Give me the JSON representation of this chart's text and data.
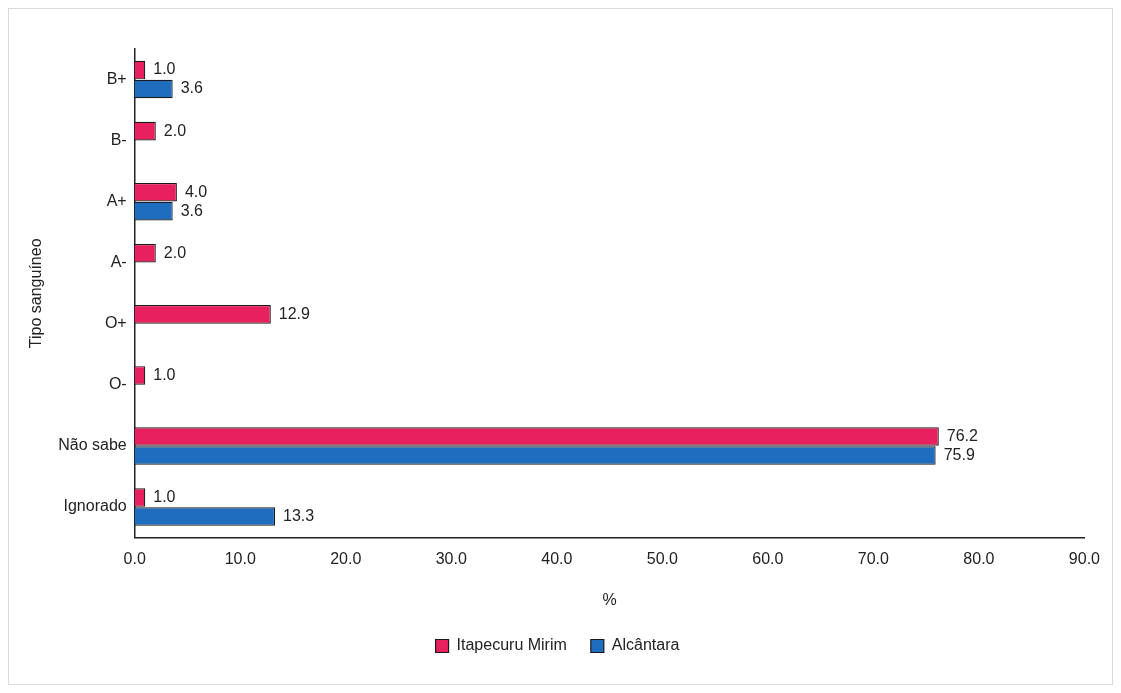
{
  "chart_data": {
    "type": "bar",
    "orientation": "horizontal",
    "xlabel": "%",
    "ylabel": "Tipo sanguíneo",
    "categories": [
      "B+",
      "B-",
      "A+",
      "A-",
      "O+",
      "O-",
      "Não sabe",
      "Ignorado"
    ],
    "series": [
      {
        "name": "Itapecuru Mirim",
        "color": "#e8205e",
        "values": [
          1.0,
          2.0,
          4.0,
          2.0,
          12.9,
          1.0,
          76.2,
          1.0
        ],
        "value_labels": [
          "1.0",
          "2.0",
          "4.0",
          "2.0",
          "12.9",
          "1.0",
          "76.2",
          "1.0"
        ]
      },
      {
        "name": "Alcântara",
        "color": "#1f6dbf",
        "values": [
          3.6,
          null,
          3.6,
          null,
          null,
          null,
          75.9,
          13.3
        ],
        "value_labels": [
          "3.6",
          null,
          "3.6",
          null,
          null,
          null,
          "75.9",
          "13.3"
        ]
      }
    ],
    "xlim": [
      0,
      90
    ],
    "xticks": [
      {
        "value": 0,
        "label": "0.0"
      },
      {
        "value": 10,
        "label": "10.0"
      },
      {
        "value": 20,
        "label": "20.0"
      },
      {
        "value": 30,
        "label": "30.0"
      },
      {
        "value": 40,
        "label": "40.0"
      },
      {
        "value": 50,
        "label": "50.0"
      },
      {
        "value": 60,
        "label": "60.0"
      },
      {
        "value": 70,
        "label": "70.0"
      },
      {
        "value": 80,
        "label": "80.0"
      },
      {
        "value": 90,
        "label": "90.0"
      }
    ],
    "grid": false,
    "legend": "bottom"
  }
}
